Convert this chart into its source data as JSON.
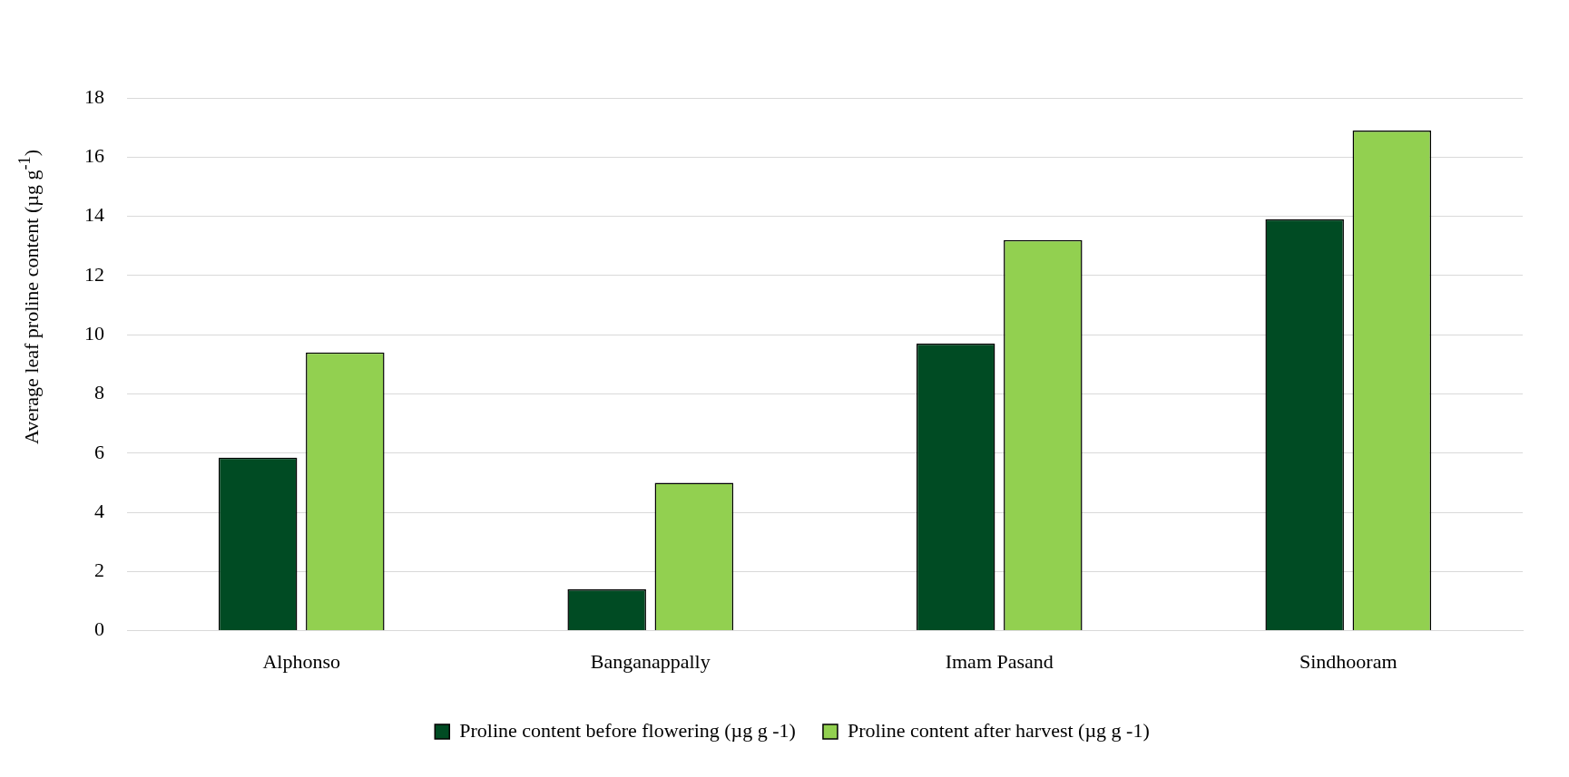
{
  "chart_data": {
    "type": "bar",
    "ylabel": "Average leaf proline content (µg g$^{-1}$)",
    "categories": [
      "Alphonso",
      "Banganappally",
      "Imam Pasand",
      "Sindhooram"
    ],
    "series": [
      {
        "name": "Proline content before flowering (µg g -1)",
        "color": "#004b23",
        "values": [
          5.85,
          1.4,
          9.7,
          13.9
        ]
      },
      {
        "name": "Proline content after harvest (µg g -1)",
        "color": "#92d050",
        "values": [
          9.4,
          5.0,
          13.2,
          16.9
        ]
      }
    ],
    "ylim": [
      0,
      18
    ],
    "yticks": [
      0,
      2,
      4,
      6,
      8,
      10,
      12,
      14,
      16,
      18
    ],
    "grid": "y",
    "legend": "bottom"
  }
}
